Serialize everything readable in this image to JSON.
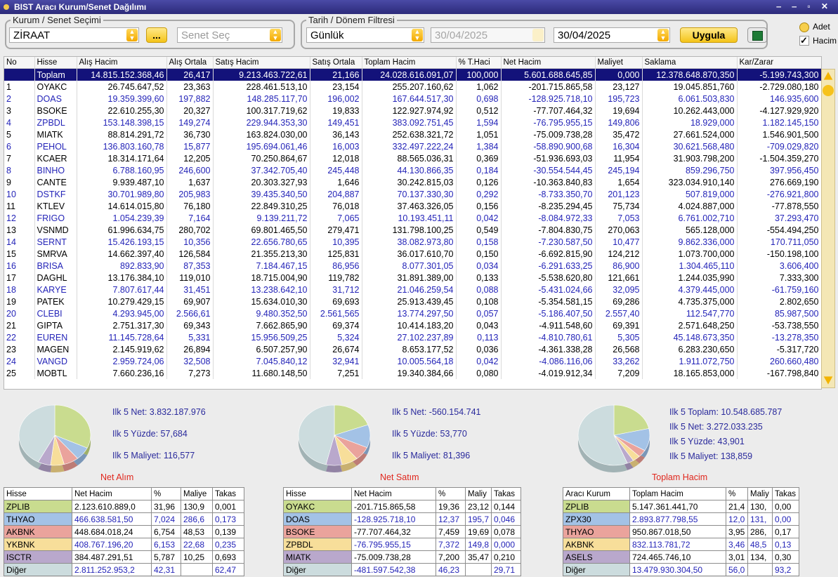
{
  "window": {
    "title": "BIST Aracı Kurum/Senet Dağılımı"
  },
  "controls": {
    "broker_group": "Kurum / Senet Seçimi",
    "broker": "ZİRAAT",
    "more_button": "...",
    "stock_placeholder": "Senet Seç",
    "date_group": "Tarih / Dönem Filtresi",
    "period": "Günlük",
    "start_date": "30/04/2025",
    "end_date": "30/04/2025",
    "apply_button": "Uygula",
    "adet": "Adet",
    "hacim": "Hacim"
  },
  "table": {
    "columns": [
      "No",
      "Hisse",
      "Alış Hacim",
      "Alış Ortala",
      "Satış Hacim",
      "Satış Ortala",
      "Toplam Hacim",
      "% T.Haci",
      "Net Hacim",
      "Maliyet",
      "Saklama",
      "Kar/Zarar"
    ],
    "total_row": [
      "Toplam",
      "14.815.152.368,46",
      "26,417",
      "9.213.463.722,61",
      "21,166",
      "24.028.616.091,07",
      "100,000",
      "5.601.688.645,85",
      "0,000",
      "12.378.648.870,350",
      "-5.199.743,300"
    ],
    "rows": [
      [
        1,
        "OYAKC",
        "26.745.647,52",
        "23,363",
        "228.461.513,10",
        "23,154",
        "255.207.160,62",
        "1,062",
        "-201.715.865,58",
        "23,127",
        "19.045.851,760",
        "-2.729.080,180"
      ],
      [
        2,
        "DOAS",
        "19.359.399,60",
        "197,882",
        "148.285.117,70",
        "196,002",
        "167.644.517,30",
        "0,698",
        "-128.925.718,10",
        "195,723",
        "6.061.503,830",
        "146.935,600"
      ],
      [
        3,
        "BSOKE",
        "22.610.255,30",
        "20,327",
        "100.317.719,62",
        "19,833",
        "122.927.974,92",
        "0,512",
        "-77.707.464,32",
        "19,694",
        "10.262.443,000",
        "-4.127.929,920"
      ],
      [
        4,
        "ZPBDL",
        "153.148.398,15",
        "149,274",
        "229.944.353,30",
        "149,451",
        "383.092.751,45",
        "1,594",
        "-76.795.955,15",
        "149,806",
        "18.929,000",
        "1.182.145,150"
      ],
      [
        5,
        "MIATK",
        "88.814.291,72",
        "36,730",
        "163.824.030,00",
        "36,143",
        "252.638.321,72",
        "1,051",
        "-75.009.738,28",
        "35,472",
        "27.661.524,000",
        "1.546.901,500"
      ],
      [
        6,
        "PEHOL",
        "136.803.160,78",
        "15,877",
        "195.694.061,46",
        "16,003",
        "332.497.222,24",
        "1,384",
        "-58.890.900,68",
        "16,304",
        "30.621.568,480",
        "-709.029,820"
      ],
      [
        7,
        "KCAER",
        "18.314.171,64",
        "12,205",
        "70.250.864,67",
        "12,018",
        "88.565.036,31",
        "0,369",
        "-51.936.693,03",
        "11,954",
        "31.903.798,200",
        "-1.504.359,270"
      ],
      [
        8,
        "BINHO",
        "6.788.160,95",
        "246,600",
        "37.342.705,40",
        "245,448",
        "44.130.866,35",
        "0,184",
        "-30.554.544,45",
        "245,194",
        "859.296,750",
        "397.956,450"
      ],
      [
        9,
        "CANTE",
        "9.939.487,10",
        "1,637",
        "20.303.327,93",
        "1,646",
        "30.242.815,03",
        "0,126",
        "-10.363.840,83",
        "1,654",
        "323.034.910,140",
        "276.669,190"
      ],
      [
        10,
        "DSTKF",
        "30.701.989,80",
        "205,983",
        "39.435.340,50",
        "204,887",
        "70.137.330,30",
        "0,292",
        "-8.733.350,70",
        "201,123",
        "507.819,000",
        "-276.921,800"
      ],
      [
        11,
        "KTLEV",
        "14.614.015,80",
        "76,180",
        "22.849.310,25",
        "76,018",
        "37.463.326,05",
        "0,156",
        "-8.235.294,45",
        "75,734",
        "4.024.887,000",
        "-77.878,550"
      ],
      [
        12,
        "FRIGO",
        "1.054.239,39",
        "7,164",
        "9.139.211,72",
        "7,065",
        "10.193.451,11",
        "0,042",
        "-8.084.972,33",
        "7,053",
        "6.761.002,710",
        "37.293,470"
      ],
      [
        13,
        "VSNMD",
        "61.996.634,75",
        "280,702",
        "69.801.465,50",
        "279,471",
        "131.798.100,25",
        "0,549",
        "-7.804.830,75",
        "270,063",
        "565.128,000",
        "-554.494,250"
      ],
      [
        14,
        "SERNT",
        "15.426.193,15",
        "10,356",
        "22.656.780,65",
        "10,395",
        "38.082.973,80",
        "0,158",
        "-7.230.587,50",
        "10,477",
        "9.862.336,000",
        "170.711,050"
      ],
      [
        15,
        "SMRVA",
        "14.662.397,40",
        "126,584",
        "21.355.213,30",
        "125,831",
        "36.017.610,70",
        "0,150",
        "-6.692.815,90",
        "124,212",
        "1.073.700,000",
        "-150.198,100"
      ],
      [
        16,
        "BRISA",
        "892.833,90",
        "87,353",
        "7.184.467,15",
        "86,956",
        "8.077.301,05",
        "0,034",
        "-6.291.633,25",
        "86,900",
        "1.304.465,110",
        "3.606,400"
      ],
      [
        17,
        "DAGHL",
        "13.176.384,10",
        "119,010",
        "18.715.004,90",
        "119,782",
        "31.891.389,00",
        "0,133",
        "-5.538.620,80",
        "121,661",
        "1.244.035,990",
        "7.333,300"
      ],
      [
        18,
        "KARYE",
        "7.807.617,44",
        "31,451",
        "13.238.642,10",
        "31,712",
        "21.046.259,54",
        "0,088",
        "-5.431.024,66",
        "32,095",
        "4.379.445,000",
        "-61.759,160"
      ],
      [
        19,
        "PATEK",
        "10.279.429,15",
        "69,907",
        "15.634.010,30",
        "69,693",
        "25.913.439,45",
        "0,108",
        "-5.354.581,15",
        "69,286",
        "4.735.375,000",
        "2.802,650"
      ],
      [
        20,
        "CLEBI",
        "4.293.945,00",
        "2.566,61",
        "9.480.352,50",
        "2.561,565",
        "13.774.297,50",
        "0,057",
        "-5.186.407,50",
        "2.557,40",
        "112.547,770",
        "85.987,500"
      ],
      [
        21,
        "GIPTA",
        "2.751.317,30",
        "69,343",
        "7.662.865,90",
        "69,374",
        "10.414.183,20",
        "0,043",
        "-4.911.548,60",
        "69,391",
        "2.571.648,250",
        "-53.738,550"
      ],
      [
        22,
        "EUREN",
        "11.145.728,64",
        "5,331",
        "15.956.509,25",
        "5,324",
        "27.102.237,89",
        "0,113",
        "-4.810.780,61",
        "5,305",
        "45.148.673,350",
        "-13.278,350"
      ],
      [
        23,
        "MAGEN",
        "2.145.919,62",
        "26,894",
        "6.507.257,90",
        "26,674",
        "8.653.177,52",
        "0,036",
        "-4.361.338,28",
        "26,568",
        "6.283.230,650",
        "-5.317,720"
      ],
      [
        24,
        "VANGD",
        "2.959.724,06",
        "32,508",
        "7.045.840,12",
        "32,941",
        "10.005.564,18",
        "0,042",
        "-4.086.116,06",
        "33,262",
        "1.911.072,750",
        "260.660,480"
      ],
      [
        25,
        "MOBTL",
        "7.660.236,16",
        "7,273",
        "11.680.148,50",
        "7,251",
        "19.340.384,66",
        "0,080",
        "-4.019.912,34",
        "7,209",
        "18.165.853,000",
        "-167.798,840"
      ]
    ]
  },
  "panels": [
    {
      "stats": [
        "Ilk 5 Net: 3.832.187.976",
        "Ilk 5 Yüzde: 57,684",
        "Ilk 5 Maliyet: 116,577"
      ],
      "caption": "Net Alım",
      "columns": [
        "Hisse",
        "Net Hacim",
        "%",
        "Maliye",
        "Takas"
      ],
      "rows": [
        [
          "ZPLIB",
          "2.123.610.889,0",
          "31,96",
          "130,9",
          "0,001"
        ],
        [
          "THYAO",
          "466.638.581,50",
          "7,024",
          "286,6",
          "0,173"
        ],
        [
          "AKBNK",
          "448.684.018,24",
          "6,754",
          "48,53",
          "0,139"
        ],
        [
          "YKBNK",
          "408.767.196,20",
          "6,153",
          "22,68",
          "0,235"
        ],
        [
          "ISCTR",
          "384.487.291,51",
          "5,787",
          "10,25",
          "0,693"
        ],
        [
          "Diğer",
          "2.811.252.953,2",
          "42,31",
          null,
          "62,47"
        ]
      ]
    },
    {
      "stats": [
        "Ilk 5 Net: -560.154.741",
        "Ilk 5 Yüzde: 53,770",
        "Ilk 5 Maliyet: 81,396"
      ],
      "caption": "Net Satım",
      "columns": [
        "Hisse",
        "Net Hacim",
        "%",
        "Maliy",
        "Takas"
      ],
      "rows": [
        [
          "OYAKC",
          "-201.715.865,58",
          "19,36",
          "23,12",
          "0,144"
        ],
        [
          "DOAS",
          "-128.925.718,10",
          "12,37",
          "195,7",
          "0,046"
        ],
        [
          "BSOKE",
          "-77.707.464,32",
          "7,459",
          "19,69",
          "0,078"
        ],
        [
          "ZPBDL",
          "-76.795.955,15",
          "7,372",
          "149,8",
          "0,000"
        ],
        [
          "MIATK",
          "-75.009.738,28",
          "7,200",
          "35,47",
          "0,210"
        ],
        [
          "Diğer",
          "-481.597.542,38",
          "46,23",
          null,
          "29,71"
        ]
      ]
    },
    {
      "stats": [
        "Ilk 5 Toplam: 10.548.685.787",
        "Ilk 5 Net: 3.272.033.235",
        "Ilk 5 Yüzde: 43,901",
        "Ilk 5 Maliyet: 138,859"
      ],
      "caption": "Toplam Hacim",
      "columns": [
        "Aracı Kurum",
        "Toplam Hacim",
        "%",
        "Maliy",
        "Takas"
      ],
      "rows": [
        [
          "ZPLIB",
          "5.147.361.441,70",
          "21,4",
          "130,",
          "0,00"
        ],
        [
          "ZPX30",
          "2.893.877.798,55",
          "12,0",
          "131,",
          "0,00"
        ],
        [
          "THYAO",
          "950.867.018,50",
          "3,95",
          "286,",
          "0,17"
        ],
        [
          "AKBNK",
          "832.113.781,72",
          "3,46",
          "48,5",
          "0,13"
        ],
        [
          "ASELS",
          "724.465.746,10",
          "3,01",
          "134,",
          "0,30"
        ],
        [
          "Diğer",
          "13.479.930.304,50",
          "56,0",
          null,
          "93,2"
        ]
      ]
    }
  ]
}
